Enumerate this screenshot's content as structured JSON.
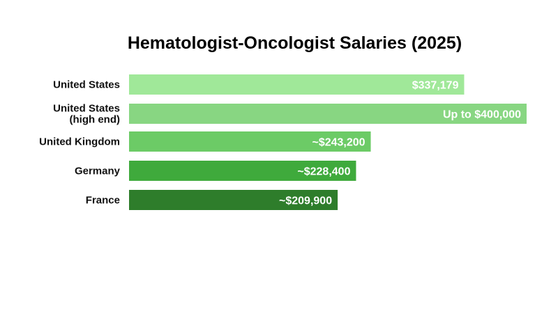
{
  "chart_data": {
    "type": "bar",
    "orientation": "horizontal",
    "title": "Hematologist-Oncologist Salaries (2025)",
    "xlabel": "",
    "ylabel": "",
    "grid": false,
    "legend": "none",
    "xlim": [
      0,
      400000
    ],
    "categories": [
      [
        "United States"
      ],
      [
        "United States",
        "(high end)"
      ],
      [
        "United Kingdom"
      ],
      [
        "Germany"
      ],
      [
        "France"
      ]
    ],
    "values": [
      337179,
      400000,
      243200,
      228400,
      209900
    ],
    "data_labels": [
      "$337,179",
      "Up to $400,000",
      "~$243,200",
      "~$228,400",
      "~$209,900"
    ],
    "colors": [
      "#a0e899",
      "#88d682",
      "#6ccb66",
      "#3faa3c",
      "#2e7d2b"
    ]
  }
}
